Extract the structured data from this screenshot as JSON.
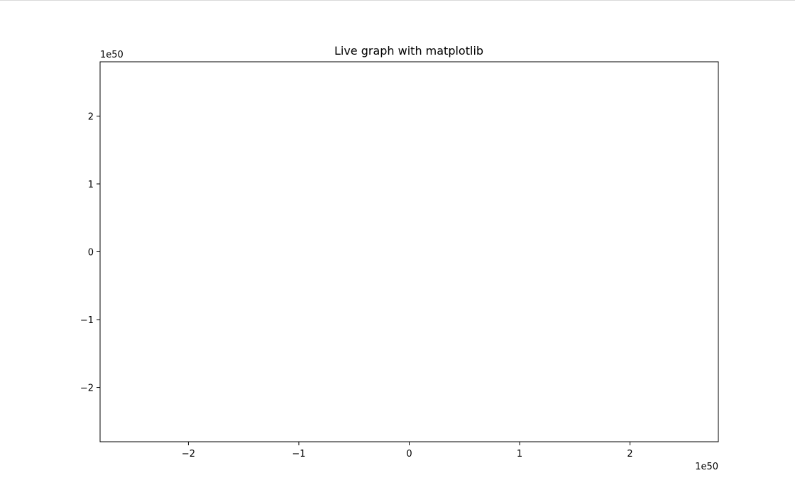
{
  "chart_data": {
    "type": "line",
    "title": "Live graph with matplotlib",
    "xlabel": "",
    "ylabel": "",
    "series": [],
    "x_scale_label": "1e50",
    "y_scale_label": "1e50",
    "xlim": [
      -2.8,
      2.8
    ],
    "ylim": [
      -2.8,
      2.8
    ],
    "x_ticks": [
      -2,
      -1,
      0,
      1,
      2
    ],
    "y_ticks": [
      -2,
      -1,
      0,
      1,
      2
    ],
    "x_tick_labels": [
      "−2",
      "−1",
      "0",
      "1",
      "2"
    ],
    "y_tick_labels": [
      "−2",
      "−1",
      "0",
      "1",
      "2"
    ],
    "grid": false,
    "legend": "none"
  }
}
